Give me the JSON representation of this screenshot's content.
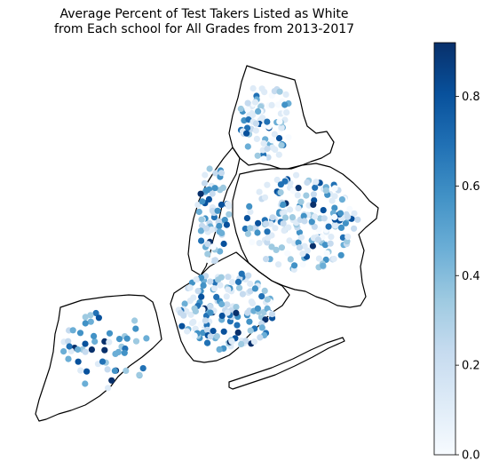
{
  "title": {
    "line1": "Average Percent of Test Takers Listed as White",
    "line2": "from Each school for All Grades from 2013-2017"
  },
  "colorbar": {
    "colormap": "Blues",
    "vmin": 0.0,
    "vmax": 0.92,
    "ticks": [
      "0.0",
      "0.2",
      "0.4",
      "0.6",
      "0.8"
    ],
    "tick_values": [
      0.0,
      0.2,
      0.4,
      0.6,
      0.8
    ]
  },
  "colors": {
    "low": "#f7fbff",
    "high": "#08306b",
    "border": "#000000"
  }
}
